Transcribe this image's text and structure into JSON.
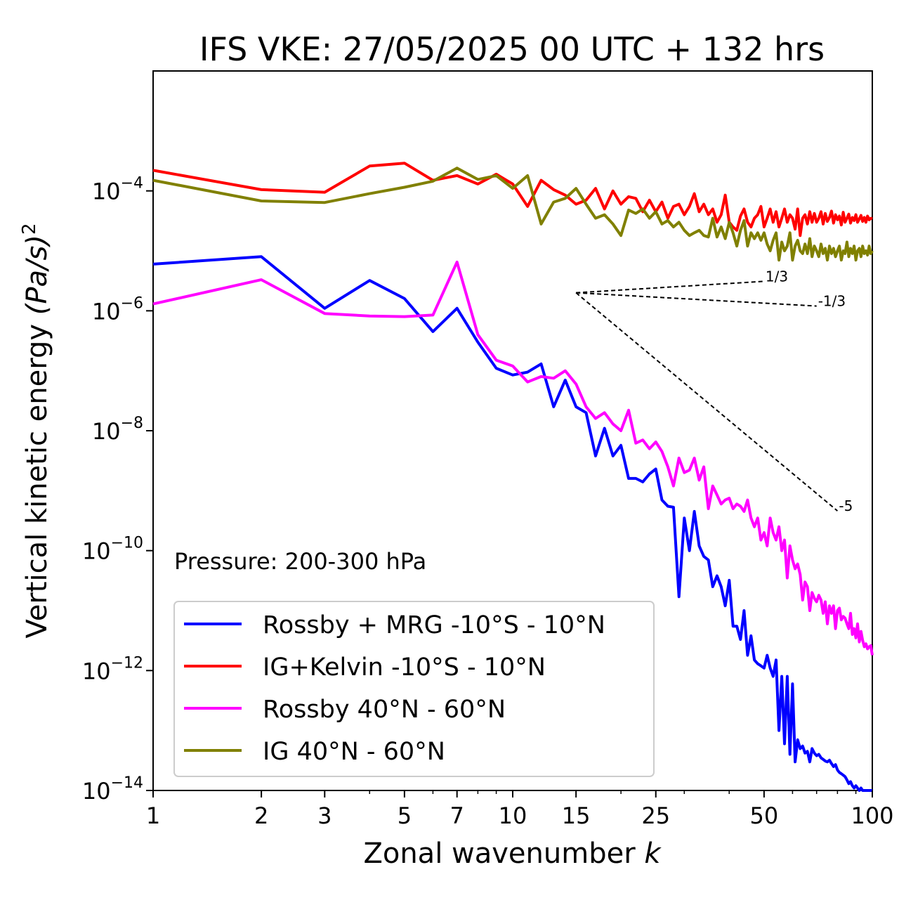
{
  "chart_data": {
    "type": "line",
    "title": "IFS VKE: 27/05/2025 00 UTC + 132 hrs",
    "xlabel": "Zonal wavenumber",
    "xlabel_italic": "k",
    "ylabel": "Vertical kinetic energy",
    "ylabel_unit": "(Pa/s)",
    "ylabel_unit_exp": "2",
    "xscale": "log",
    "yscale": "log",
    "xlim": [
      1,
      100
    ],
    "ylim": [
      1e-14,
      0.01
    ],
    "xticks": [
      1,
      2,
      3,
      5,
      7,
      10,
      15,
      25,
      50,
      100
    ],
    "xtick_labels": [
      "1",
      "2",
      "3",
      "5",
      "7",
      "10",
      "15",
      "25",
      "50",
      "100"
    ],
    "yticks": [
      {
        "value": 0.0001,
        "base": "10",
        "exp": "−4"
      },
      {
        "value": 1e-06,
        "base": "10",
        "exp": "−6"
      },
      {
        "value": 1e-08,
        "base": "10",
        "exp": "−8"
      },
      {
        "value": 1e-10,
        "base": "10",
        "exp": "−10"
      },
      {
        "value": 1e-12,
        "base": "10",
        "exp": "−12"
      },
      {
        "value": 1e-14,
        "base": "10",
        "exp": "−14"
      }
    ],
    "annotation": "Pressure: 200-300 hPa",
    "legend_position": "lower-left",
    "slope_lines": [
      {
        "label": "1/3",
        "start": [
          15,
          2e-06
        ],
        "end": [
          50,
          3.1e-06
        ]
      },
      {
        "label": "-1/3",
        "start": [
          15,
          2e-06
        ],
        "end": [
          70,
          1.2e-06
        ]
      },
      {
        "label": "-5",
        "start": [
          15,
          2e-06
        ],
        "end": [
          80,
          4.6e-10
        ]
      }
    ],
    "series": [
      {
        "name": "Rossby + MRG -10°S - 10°N",
        "color": "#0000ff",
        "x": [
          1,
          2,
          3,
          4,
          5,
          6,
          7,
          8,
          9,
          10,
          11,
          12,
          13,
          14,
          15,
          16,
          17,
          18,
          19,
          20,
          21,
          22,
          23,
          24,
          25,
          26,
          27,
          28,
          29,
          30,
          31,
          32,
          33,
          34,
          35,
          36,
          37,
          38,
          39,
          40,
          41,
          42,
          43,
          44,
          45,
          46,
          47,
          48,
          49,
          50,
          51,
          52,
          53,
          54,
          55,
          56,
          57,
          58,
          59,
          60,
          61,
          62,
          63,
          64,
          65,
          66,
          67,
          68,
          69,
          70,
          71,
          72,
          73,
          74,
          75,
          76,
          77,
          78,
          79,
          80,
          81,
          82,
          83,
          84,
          85,
          86,
          87,
          88,
          89,
          90,
          91,
          92,
          93,
          94,
          95,
          96,
          97,
          98,
          99,
          100
        ],
        "y": [
          6e-06,
          8e-06,
          1.1e-06,
          3.2e-06,
          1.6e-06,
          4.5e-07,
          1.1e-06,
          3e-07,
          1.1e-07,
          8.5e-08,
          9.5e-08,
          1.3e-07,
          2.5e-08,
          7e-08,
          2.5e-08,
          2e-08,
          3.8e-09,
          1.1e-08,
          3.8e-09,
          5.7e-09,
          1.6e-09,
          1.6e-09,
          1.4e-09,
          1.9e-09,
          2.3e-09,
          7e-10,
          5.5e-10,
          5.3e-10,
          1.7e-11,
          3.5e-10,
          1e-10,
          4.5e-10,
          1.2e-10,
          8e-11,
          7e-11,
          2.5e-11,
          3.8e-11,
          2.5e-11,
          1.2e-11,
          3.2e-11,
          5.5e-12,
          5.5e-12,
          3.3e-12,
          1e-11,
          1.8e-12,
          3.8e-12,
          1.5e-12,
          1.3e-12,
          1.2e-12,
          1.1e-12,
          1.8e-12,
          1.1e-12,
          8e-13,
          1.5e-12,
          1e-13,
          8e-13,
          6e-14,
          8e-13,
          4e-14,
          6e-13,
          3e-14,
          7e-14,
          5e-14,
          5.5e-14,
          4.2e-14,
          4.5e-14,
          3e-14,
          5e-14,
          4.2e-14,
          3.8e-14,
          4e-14,
          3.5e-14,
          3.3e-14,
          3.1e-14,
          3e-14,
          3.2e-14,
          2.8e-14,
          2.5e-14,
          2.7e-14,
          2.2e-14,
          2e-14,
          1.9e-14,
          1.8e-14,
          1.7e-14,
          1.5e-14,
          1.3e-14,
          1.4e-14,
          1.2e-14,
          1.1e-14,
          1.2e-14,
          1.1e-14,
          1e-14,
          1.1e-14,
          1e-14,
          1e-14,
          1e-14,
          1e-14,
          1e-14,
          1e-14,
          1e-14
        ]
      },
      {
        "name": "IG+Kelvin -10°S - 10°N",
        "color": "#ff0000",
        "x": [
          1,
          2,
          3,
          4,
          5,
          6,
          7,
          8,
          9,
          10,
          11,
          12,
          13,
          14,
          15,
          16,
          17,
          18,
          19,
          20,
          21,
          22,
          23,
          24,
          25,
          26,
          27,
          28,
          29,
          30,
          31,
          32,
          33,
          34,
          35,
          36,
          37,
          38,
          39,
          40,
          41,
          42,
          43,
          44,
          45,
          46,
          47,
          48,
          49,
          50,
          51,
          52,
          53,
          54,
          55,
          56,
          57,
          58,
          59,
          60,
          61,
          62,
          63,
          64,
          65,
          66,
          67,
          68,
          69,
          70,
          71,
          72,
          73,
          74,
          75,
          76,
          77,
          78,
          79,
          80,
          81,
          82,
          83,
          84,
          85,
          86,
          87,
          88,
          89,
          90,
          91,
          92,
          93,
          94,
          95,
          96,
          97,
          98,
          99,
          100
        ],
        "y": [
          0.00022,
          0.000105,
          9.5e-05,
          0.00026,
          0.00029,
          0.00015,
          0.00018,
          0.00013,
          0.00019,
          0.00013,
          5.5e-05,
          0.00015,
          0.000105,
          8.5e-05,
          6e-05,
          7e-05,
          0.00011,
          5e-05,
          0.0001,
          6e-05,
          8e-05,
          7.5e-05,
          4.5e-05,
          7e-05,
          4.5e-05,
          6.5e-05,
          3.5e-05,
          5.5e-05,
          6e-05,
          4e-05,
          5.5e-05,
          9e-05,
          4.5e-05,
          6e-05,
          4e-05,
          5e-05,
          3e-05,
          4e-05,
          8.5e-05,
          3e-05,
          2.5e-05,
          2.2e-05,
          3.8e-05,
          5e-05,
          3e-05,
          2.5e-05,
          3.5e-05,
          4e-05,
          5.5e-05,
          2.5e-05,
          3.5e-05,
          5e-05,
          3e-05,
          4.5e-05,
          2.5e-05,
          3.5e-05,
          5e-05,
          3e-05,
          4e-05,
          3.5e-05,
          2.3e-05,
          5e-05,
          1.8e-05,
          3.5e-05,
          4e-05,
          2.8e-05,
          4.5e-05,
          3e-05,
          4.2e-05,
          3e-05,
          3.5e-05,
          4.5e-05,
          2.8e-05,
          4.2e-05,
          3.1e-05,
          3.6e-05,
          4.6e-05,
          2.9e-05,
          4e-05,
          3.3e-05,
          3.8e-05,
          2.7e-05,
          4.4e-05,
          3e-05,
          3.5e-05,
          4.1e-05,
          2.9e-05,
          3.6e-05,
          3.2e-05,
          4e-05,
          3e-05,
          3.4e-05,
          3.9e-05,
          3.1e-05,
          3.6e-05,
          3e-05,
          3.8e-05,
          3.3e-05,
          3.5e-05,
          3.4e-05
        ]
      },
      {
        "name": "Rossby 40°N - 60°N",
        "color": "#ff00ff",
        "x": [
          1,
          2,
          3,
          4,
          5,
          6,
          7,
          8,
          9,
          10,
          11,
          12,
          13,
          14,
          15,
          16,
          17,
          18,
          19,
          20,
          21,
          22,
          23,
          24,
          25,
          26,
          27,
          28,
          29,
          30,
          31,
          32,
          33,
          34,
          35,
          36,
          37,
          38,
          39,
          40,
          41,
          42,
          43,
          44,
          45,
          46,
          47,
          48,
          49,
          50,
          51,
          52,
          53,
          54,
          55,
          56,
          57,
          58,
          59,
          60,
          61,
          62,
          63,
          64,
          65,
          66,
          67,
          68,
          69,
          70,
          71,
          72,
          73,
          74,
          75,
          76,
          77,
          78,
          79,
          80,
          81,
          82,
          83,
          84,
          85,
          86,
          87,
          88,
          89,
          90,
          91,
          92,
          93,
          94,
          95,
          96,
          97,
          98,
          99,
          100
        ],
        "y": [
          1.3e-06,
          3.3e-06,
          9e-07,
          8.2e-07,
          8e-07,
          8.5e-07,
          6.5e-06,
          4e-07,
          1.5e-07,
          1.2e-07,
          6.5e-08,
          8e-08,
          7.5e-08,
          1e-07,
          6e-08,
          2.5e-08,
          1.6e-08,
          2e-08,
          1.3e-08,
          1e-08,
          2.2e-08,
          6.2e-09,
          7e-09,
          5e-09,
          6.5e-09,
          4.5e-09,
          2.5e-09,
          1.2e-09,
          3.5e-09,
          2e-09,
          2.2e-09,
          3.5e-09,
          1.5e-09,
          2.5e-09,
          5e-10,
          1.2e-09,
          8.5e-10,
          6e-10,
          7e-10,
          7.5e-10,
          5e-10,
          6e-10,
          5.5e-10,
          4.5e-10,
          7e-10,
          3.5e-10,
          2.5e-10,
          3.5e-10,
          1.5e-10,
          2e-10,
          1.2e-10,
          3.5e-10,
          2e-10,
          1.5e-10,
          2.5e-10,
          1e-10,
          1.5e-10,
          3.5e-11,
          1.2e-10,
          7e-11,
          5e-11,
          6e-11,
          4e-11,
          1.5e-11,
          3e-11,
          2.5e-11,
          1e-11,
          2e-11,
          1.6e-11,
          1.4e-11,
          1.8e-11,
          1.5e-11,
          9e-12,
          1.4e-11,
          6e-12,
          1.2e-11,
          9e-12,
          1.2e-11,
          5e-12,
          1e-11,
          1.1e-11,
          7e-12,
          8e-12,
          7.5e-12,
          6e-12,
          5e-12,
          9e-12,
          4e-12,
          5e-12,
          3.5e-12,
          6e-12,
          3e-12,
          4.5e-12,
          3.2e-12,
          2.5e-12,
          2.8e-12,
          2.3e-12,
          2.5e-12,
          2.6e-12,
          1.8e-12
        ]
      },
      {
        "name": "IG 40°N - 60°N",
        "color": "#808000",
        "x": [
          1,
          2,
          3,
          4,
          5,
          6,
          7,
          8,
          9,
          10,
          11,
          12,
          13,
          14,
          15,
          16,
          17,
          18,
          19,
          20,
          21,
          22,
          23,
          24,
          25,
          26,
          27,
          28,
          29,
          30,
          31,
          32,
          33,
          34,
          35,
          36,
          37,
          38,
          39,
          40,
          41,
          42,
          43,
          44,
          45,
          46,
          47,
          48,
          49,
          50,
          51,
          52,
          53,
          54,
          55,
          56,
          57,
          58,
          59,
          60,
          61,
          62,
          63,
          64,
          65,
          66,
          67,
          68,
          69,
          70,
          71,
          72,
          73,
          74,
          75,
          76,
          77,
          78,
          79,
          80,
          81,
          82,
          83,
          84,
          85,
          86,
          87,
          88,
          89,
          90,
          91,
          92,
          93,
          94,
          95,
          96,
          97,
          98,
          99,
          100
        ],
        "y": [
          0.00015,
          6.8e-05,
          6.4e-05,
          9e-05,
          0.000115,
          0.000145,
          0.00024,
          0.000155,
          0.00018,
          0.00011,
          0.00018,
          2.8e-05,
          6.5e-05,
          7.5e-05,
          0.00011,
          6e-05,
          3.5e-05,
          4e-05,
          2.8e-05,
          1.8e-05,
          4.8e-05,
          4.2e-05,
          5e-05,
          3.5e-05,
          4.5e-05,
          2.8e-05,
          3.2e-05,
          2.5e-05,
          3e-05,
          2.2e-05,
          1.8e-05,
          2e-05,
          2.2e-05,
          1.8e-05,
          1.7e-05,
          3.5e-05,
          1.7e-05,
          2.5e-05,
          1.6e-05,
          3e-05,
          2e-05,
          1.2e-05,
          2.2e-05,
          3.2e-05,
          1.2e-05,
          2e-05,
          1.6e-05,
          2e-05,
          1.5e-05,
          2e-05,
          1.3e-05,
          1e-05,
          1.5e-05,
          2e-05,
          7e-06,
          1.4e-05,
          1e-05,
          1.2e-05,
          2e-05,
          7e-06,
          1.2e-05,
          1.5e-05,
          1e-05,
          9e-06,
          1.3e-05,
          9e-06,
          1.6e-05,
          8e-06,
          1.2e-05,
          1e-05,
          8e-06,
          1.3e-05,
          9e-06,
          1.1e-05,
          7e-06,
          1.2e-05,
          9e-06,
          1.1e-05,
          8e-06,
          1e-05,
          1.2e-05,
          7e-06,
          1e-05,
          9e-06,
          1.4e-05,
          8e-06,
          1.1e-05,
          9e-06,
          1.2e-05,
          7e-06,
          1e-05,
          1.1e-05,
          8e-06,
          1.2e-05,
          9e-06,
          1e-05,
          8.5e-06,
          1.2e-05,
          9e-06,
          1e-05
        ]
      }
    ]
  }
}
